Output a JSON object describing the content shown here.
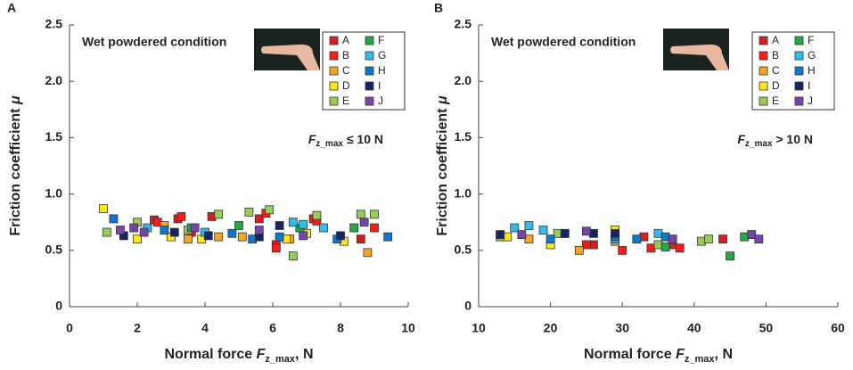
{
  "chart_data": [
    {
      "type": "scatter",
      "panel": "A",
      "annotation": "Wet powdered condition",
      "condition": {
        "var": "F",
        "sub": "z_max",
        "rest": " ≤ 10 N"
      },
      "ylabel": {
        "text": "Friction coefficient ",
        "var": "μ"
      },
      "xlabel": {
        "text": "Normal force ",
        "var": "F",
        "sub": "z_max",
        "unit": ", N"
      },
      "xlim": [
        0,
        10
      ],
      "xticks": [
        0,
        2,
        4,
        6,
        8,
        10
      ],
      "ylim": [
        0,
        2.5
      ],
      "yticks": [
        0,
        0.5,
        {
          "value": 1,
          "label": "1.0"
        },
        1.5,
        {
          "value": 2,
          "label": "2.0"
        },
        2.5
      ],
      "series": [
        {
          "name": "A",
          "color": "#d81e1e",
          "x": [
            2.5,
            3.2,
            4.2,
            5.6,
            6.1,
            7.2,
            8.6,
            3.6
          ],
          "values": [
            0.77,
            0.78,
            0.8,
            0.78,
            0.55,
            0.78,
            0.6,
            0.66
          ]
        },
        {
          "name": "B",
          "color": "#ff1a1a",
          "x": [
            2.6,
            3.3,
            5.8,
            6.1,
            7.3,
            9.0
          ],
          "values": [
            0.75,
            0.8,
            0.83,
            0.52,
            0.76,
            0.7
          ]
        },
        {
          "name": "C",
          "color": "#f5a623",
          "x": [
            2.8,
            3.5,
            4.4,
            6.5,
            8.8,
            5.1
          ],
          "values": [
            0.72,
            0.6,
            0.62,
            0.6,
            0.48,
            0.62
          ]
        },
        {
          "name": "D",
          "color": "#ffe81a",
          "x": [
            1.0,
            2.0,
            3.0,
            3.9,
            6.4,
            7.0,
            8.1
          ],
          "values": [
            0.87,
            0.6,
            0.62,
            0.6,
            0.6,
            0.65,
            0.58
          ]
        },
        {
          "name": "E",
          "color": "#99cc55",
          "x": [
            1.1,
            2.0,
            3.5,
            4.4,
            5.3,
            5.9,
            6.6,
            7.3,
            8.6,
            9.0
          ],
          "values": [
            0.66,
            0.75,
            0.68,
            0.82,
            0.84,
            0.86,
            0.45,
            0.81,
            0.82,
            0.82
          ]
        },
        {
          "name": "F",
          "color": "#22aa44",
          "x": [
            3.6,
            5.0,
            6.8,
            8.4
          ],
          "values": [
            0.7,
            0.72,
            0.7,
            0.7
          ]
        },
        {
          "name": "G",
          "color": "#33bbee",
          "x": [
            2.3,
            4.0,
            6.6,
            7.5,
            6.9
          ],
          "values": [
            0.7,
            0.66,
            0.75,
            0.7,
            0.73
          ]
        },
        {
          "name": "H",
          "color": "#1177cc",
          "x": [
            1.3,
            2.8,
            4.8,
            5.4,
            6.2,
            7.9,
            9.4
          ],
          "values": [
            0.78,
            0.68,
            0.65,
            0.6,
            0.62,
            0.6,
            0.62
          ]
        },
        {
          "name": "I",
          "color": "#142466",
          "x": [
            1.6,
            3.1,
            4.1,
            5.6,
            6.2,
            8.0
          ],
          "values": [
            0.63,
            0.66,
            0.63,
            0.62,
            0.72,
            0.63
          ]
        },
        {
          "name": "J",
          "color": "#7744aa",
          "x": [
            1.5,
            1.9,
            2.2,
            3.7,
            5.6,
            6.9,
            8.7
          ],
          "values": [
            0.68,
            0.7,
            0.66,
            0.7,
            0.68,
            0.63,
            0.75
          ]
        }
      ]
    },
    {
      "type": "scatter",
      "panel": "B",
      "annotation": "Wet powdered condition",
      "condition": {
        "var": "F",
        "sub": "z_max",
        "rest": " > 10 N"
      },
      "ylabel": {
        "text": "Friction coefficient ",
        "var": "μ"
      },
      "xlabel": {
        "text": "Normal force ",
        "var": "F",
        "sub": "z_max",
        "unit": ", N"
      },
      "xlim": [
        10,
        60
      ],
      "xticks": [
        10,
        20,
        30,
        40,
        50,
        60
      ],
      "ylim": [
        0,
        2.5
      ],
      "yticks": [
        0,
        0.5,
        {
          "value": 1,
          "label": "1.0"
        },
        1.5,
        {
          "value": 2,
          "label": "2.0"
        },
        2.5
      ],
      "series": [
        {
          "name": "A",
          "color": "#d81e1e",
          "x": [
            26,
            33,
            37,
            44
          ],
          "values": [
            0.55,
            0.62,
            0.55,
            0.6
          ]
        },
        {
          "name": "B",
          "color": "#ff1a1a",
          "x": [
            25,
            30,
            34,
            38
          ],
          "values": [
            0.55,
            0.5,
            0.52,
            0.52
          ]
        },
        {
          "name": "C",
          "color": "#f5a623",
          "x": [
            17,
            24,
            29
          ],
          "values": [
            0.6,
            0.5,
            0.58
          ]
        },
        {
          "name": "D",
          "color": "#ffe81a",
          "x": [
            14,
            20,
            22,
            29
          ],
          "values": [
            0.62,
            0.55,
            0.65,
            0.68
          ]
        },
        {
          "name": "E",
          "color": "#99cc55",
          "x": [
            13,
            21,
            35,
            41,
            42
          ],
          "values": [
            0.62,
            0.65,
            0.55,
            0.58,
            0.6
          ]
        },
        {
          "name": "F",
          "color": "#22aa44",
          "x": [
            36,
            45,
            47
          ],
          "values": [
            0.53,
            0.45,
            0.62
          ]
        },
        {
          "name": "G",
          "color": "#33bbee",
          "x": [
            15,
            17,
            19,
            29,
            35
          ],
          "values": [
            0.7,
            0.72,
            0.68,
            0.6,
            0.65
          ]
        },
        {
          "name": "H",
          "color": "#1177cc",
          "x": [
            20,
            29,
            32,
            36
          ],
          "values": [
            0.6,
            0.62,
            0.6,
            0.62
          ]
        },
        {
          "name": "I",
          "color": "#142466",
          "x": [
            13,
            22,
            26,
            29
          ],
          "values": [
            0.64,
            0.65,
            0.65,
            0.65
          ]
        },
        {
          "name": "J",
          "color": "#7744aa",
          "x": [
            16,
            25,
            37,
            48,
            49
          ],
          "values": [
            0.64,
            0.67,
            0.6,
            0.64,
            0.6
          ]
        }
      ]
    }
  ]
}
